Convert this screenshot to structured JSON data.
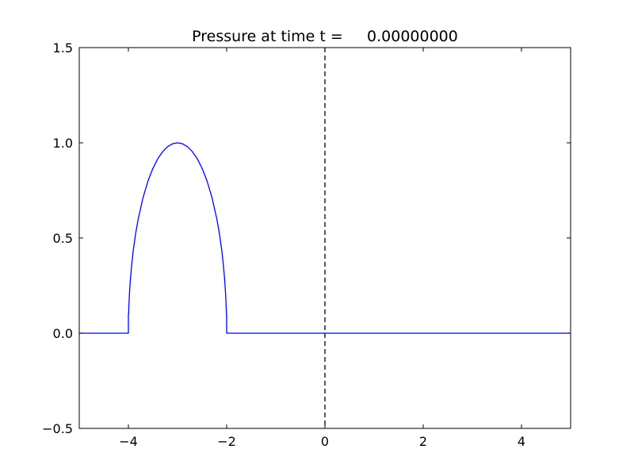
{
  "chart_data": {
    "type": "line",
    "title": "Pressure at time t =     0.00000000",
    "xlabel": "",
    "ylabel": "",
    "xlim": [
      -5,
      5
    ],
    "ylim": [
      -0.5,
      1.5
    ],
    "grid": false,
    "x_ticks": [
      -4,
      -2,
      0,
      2,
      4
    ],
    "x_tick_labels": [
      "−4",
      "−2",
      "0",
      "2",
      "4"
    ],
    "y_ticks": [
      -0.5,
      0.0,
      0.5,
      1.0,
      1.5
    ],
    "y_tick_labels": [
      "−0.5",
      "0.0",
      "0.5",
      "1.0",
      "1.5"
    ],
    "series": [
      {
        "color": "#0000ff",
        "style": "solid",
        "x": [
          -5,
          -4.5,
          -4.0,
          -4.0,
          -3.995,
          -3.99,
          -3.98,
          -3.96,
          -3.93,
          -3.9,
          -3.85,
          -3.8,
          -3.7,
          -3.6,
          -3.5,
          -3.4,
          -3.3,
          -3.2,
          -3.1,
          -3.0,
          -2.9,
          -2.8,
          -2.7,
          -2.6,
          -2.5,
          -2.4,
          -2.3,
          -2.2,
          -2.15,
          -2.1,
          -2.07,
          -2.04,
          -2.02,
          -2.01,
          -2.005,
          -2.0,
          -2.0,
          -1.0,
          0.0,
          1.0,
          2.0,
          3.0,
          4.0,
          5.0
        ],
        "y": [
          0,
          0,
          0,
          0.1,
          0.1,
          0.141,
          0.199,
          0.28,
          0.367,
          0.436,
          0.527,
          0.6,
          0.714,
          0.8,
          0.866,
          0.917,
          0.954,
          0.98,
          0.995,
          1.0,
          0.995,
          0.98,
          0.954,
          0.917,
          0.866,
          0.8,
          0.714,
          0.6,
          0.527,
          0.436,
          0.367,
          0.28,
          0.199,
          0.141,
          0.1,
          0.1,
          0,
          0,
          0,
          0,
          0,
          0,
          0,
          0
        ]
      }
    ],
    "reference_lines": [
      {
        "axis": "x",
        "value": 0,
        "color": "#000000",
        "style": "dashed"
      }
    ]
  }
}
